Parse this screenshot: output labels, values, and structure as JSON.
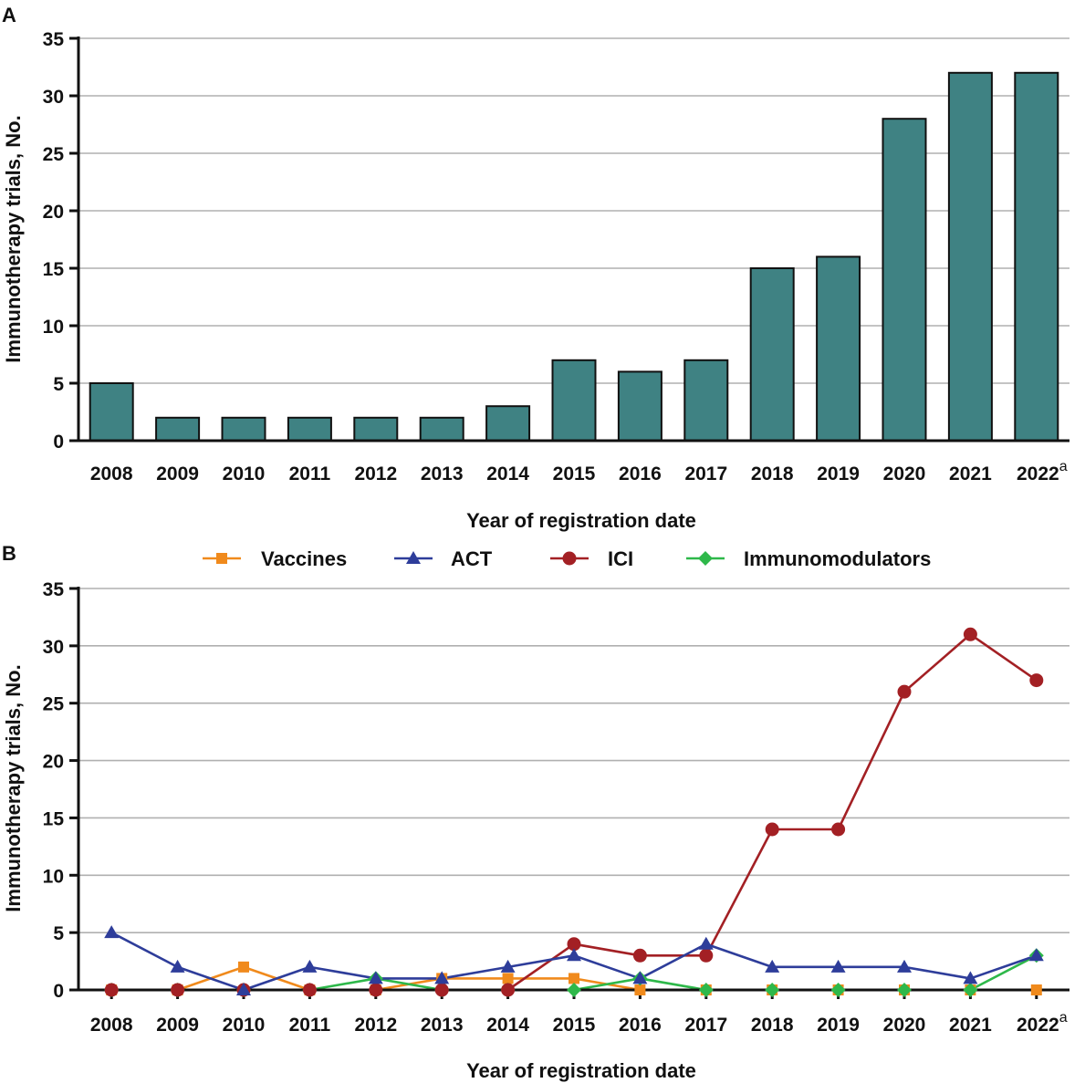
{
  "chart_data": [
    {
      "panel": "A",
      "type": "bar",
      "categories": [
        "2008",
        "2009",
        "2010",
        "2011",
        "2012",
        "2013",
        "2014",
        "2015",
        "2016",
        "2017",
        "2018",
        "2019",
        "2020",
        "2021",
        "2022"
      ],
      "values": [
        5,
        2,
        2,
        2,
        2,
        2,
        3,
        7,
        6,
        7,
        15,
        16,
        28,
        32,
        32
      ],
      "xlabel": "Year of registration date",
      "ylabel": "Immunotherapy trials, No.",
      "ylim": [
        0,
        35
      ],
      "yticks": [
        0,
        5,
        10,
        15,
        20,
        25,
        30,
        35
      ],
      "last_category_superscript": "a",
      "bar_color": "#3f8283",
      "grid": true
    },
    {
      "panel": "B",
      "type": "line",
      "x": [
        "2008",
        "2009",
        "2010",
        "2011",
        "2012",
        "2013",
        "2014",
        "2015",
        "2016",
        "2017",
        "2018",
        "2019",
        "2020",
        "2021",
        "2022"
      ],
      "series": [
        {
          "name": "Vaccines",
          "marker": "square",
          "color": "#f08a1c",
          "values": [
            0,
            0,
            2,
            0,
            0,
            1,
            1,
            1,
            0,
            0,
            0,
            0,
            0,
            0,
            0
          ]
        },
        {
          "name": "ACT",
          "marker": "triangle",
          "color": "#2e3d9a",
          "values": [
            5,
            2,
            0,
            2,
            1,
            1,
            2,
            3,
            1,
            4,
            2,
            2,
            2,
            1,
            3
          ]
        },
        {
          "name": "ICI",
          "marker": "circle",
          "color": "#a32024",
          "values": [
            0,
            0,
            0,
            0,
            0,
            0,
            0,
            4,
            3,
            3,
            14,
            14,
            26,
            31,
            27
          ]
        },
        {
          "name": "Immunomodulators",
          "marker": "diamond",
          "color": "#2eb84a",
          "values": [
            0,
            0,
            0,
            0,
            1,
            0,
            0,
            0,
            1,
            0,
            0,
            0,
            0,
            0,
            3
          ]
        }
      ],
      "xlabel": "Year of registration date",
      "ylabel": "Immunotherapy trials, No.",
      "ylim": [
        0,
        35
      ],
      "yticks": [
        0,
        5,
        10,
        15,
        20,
        25,
        30,
        35
      ],
      "last_category_superscript": "a",
      "legend": "top",
      "grid": true
    }
  ]
}
